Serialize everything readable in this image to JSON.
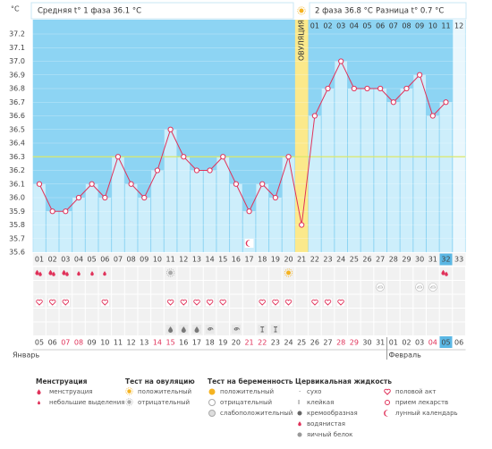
{
  "header": {
    "phase1": "Средняя t° 1 фаза 36.1 °C",
    "phase2": "2 фаза 36.8 °C",
    "difference": "Разница t° 0.7 °C"
  },
  "chart_data": {
    "type": "line",
    "y_label": "°C",
    "categories": [
      "01",
      "02",
      "03",
      "04",
      "05",
      "06",
      "07",
      "08",
      "09",
      "10",
      "11",
      "12",
      "13",
      "14",
      "15",
      "16",
      "17",
      "18",
      "19",
      "20",
      "21",
      "22",
      "23",
      "24",
      "25",
      "26",
      "27",
      "28",
      "29",
      "30",
      "31",
      "32",
      "33"
    ],
    "values": [
      36.1,
      35.9,
      35.9,
      36.0,
      36.1,
      36.0,
      36.3,
      36.1,
      36.0,
      36.2,
      36.5,
      36.3,
      36.2,
      36.2,
      36.3,
      36.1,
      35.9,
      36.1,
      36.0,
      36.3,
      35.8,
      36.6,
      36.8,
      37.0,
      36.8,
      36.8,
      36.8,
      36.7,
      36.8,
      36.9,
      36.6,
      36.7,
      null
    ],
    "color": "#e0325a",
    "ylim": [
      35.6,
      37.2
    ],
    "yticks": [
      35.6,
      35.7,
      35.8,
      35.9,
      {
        "value": 36,
        "label": "36.0"
      },
      36.1,
      36.2,
      36.3,
      36.4,
      36.5,
      36.6,
      36.7,
      36.8,
      36.9,
      {
        "value": 37,
        "label": "37.0"
      },
      37.1,
      37.2
    ],
    "coverline": 36.3,
    "ovulation_label": "ОВУЛЯЦИЯ",
    "phase2_days": [
      "01",
      "02",
      "03",
      "04",
      "05",
      "06",
      "07",
      "08",
      "09",
      "10",
      "11",
      "12"
    ],
    "dates": [
      "05",
      "06",
      "07",
      "08",
      "09",
      "10",
      "11",
      "12",
      "13",
      "14",
      "15",
      "16",
      "17",
      "18",
      "19",
      "20",
      "21",
      "22",
      "23",
      "24",
      "25",
      "26",
      "27",
      "28",
      "29",
      "30",
      "31",
      "01",
      "02",
      "03",
      "04",
      "05",
      "06"
    ],
    "date_colors": [
      "#444",
      "#444",
      "#e0325a",
      "#e0325a",
      "#444",
      "#444",
      "#444",
      "#444",
      "#444",
      "#e0325a",
      "#e0325a",
      "#444",
      "#444",
      "#444",
      "#444",
      "#444",
      "#e0325a",
      "#e0325a",
      "#444",
      "#444",
      "#444",
      "#444",
      "#444",
      "#e0325a",
      "#e0325a",
      "#444",
      "#444",
      "#444",
      "#444",
      "#444",
      "#e0325a",
      "#444",
      "#444"
    ],
    "months": [
      "Январь",
      "Февраль"
    ]
  },
  "legend": {
    "groups": [
      {
        "title": "Менструация",
        "items": [
          "менструация",
          "небольшие выделения"
        ]
      },
      {
        "title": "Тест на овуляцию",
        "items": [
          "положительный",
          "отрицательный"
        ]
      },
      {
        "title": "Тест на беременность",
        "items": [
          "положительный",
          "отрицательный",
          "слабоположительный"
        ]
      },
      {
        "title": "Цервикальная жидкость",
        "items": [
          "сухо",
          "клейкая",
          "кремообразная",
          "водянистая",
          "яичный белок"
        ]
      }
    ],
    "other": [
      "половой акт",
      "прием лекарств",
      "лунный календарь"
    ]
  }
}
